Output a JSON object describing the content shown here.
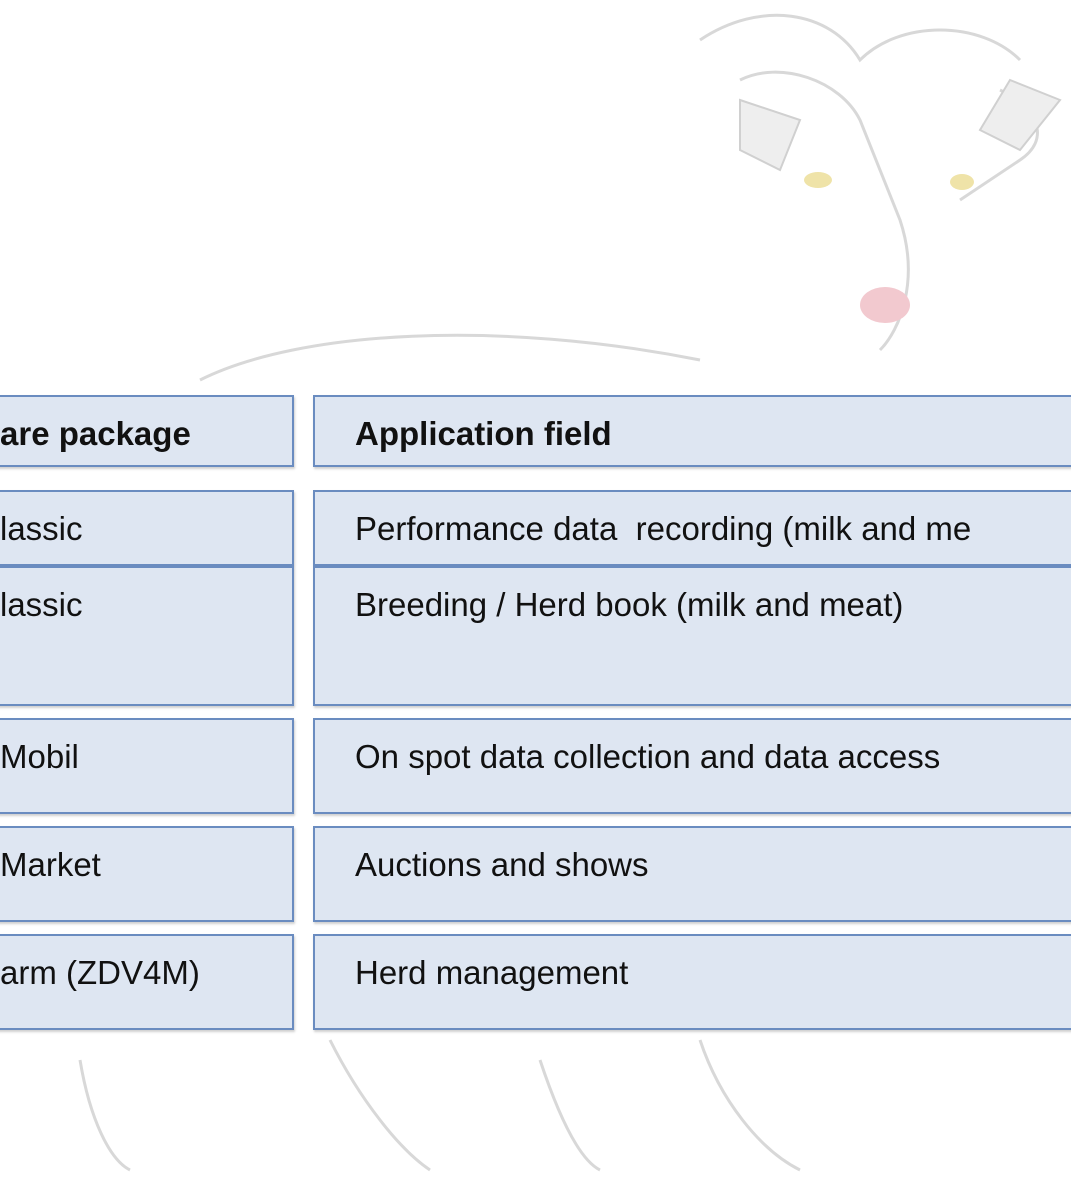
{
  "table": {
    "header": [
      "are package",
      "Application field"
    ],
    "rows": [
      [
        "lassic",
        "Performance data  recording (milk and me"
      ],
      [
        "lassic",
        "Breeding / Herd book (milk and meat)"
      ],
      [
        "Mobil",
        "On spot data collection and data access"
      ],
      [
        "Market",
        "Auctions and shows"
      ],
      [
        "arm (ZDV4M)",
        "Herd management"
      ]
    ]
  }
}
